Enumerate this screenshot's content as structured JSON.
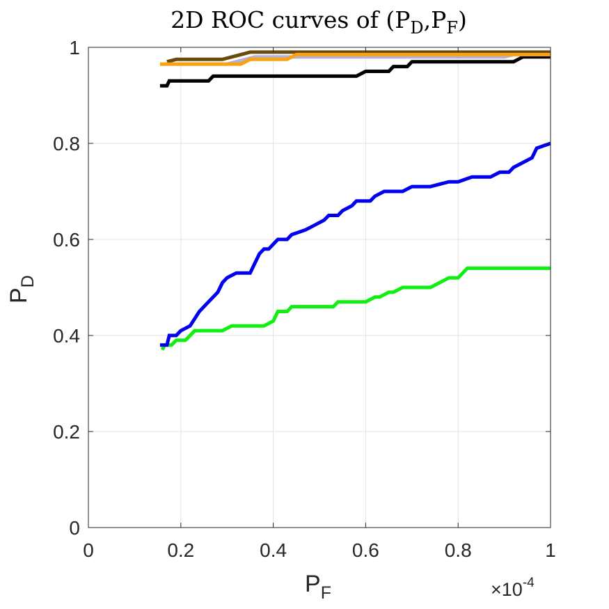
{
  "chart_data": {
    "type": "line",
    "title": {
      "prefix": "2D ROC curves of (P",
      "sub1": "D",
      "mid": ",P",
      "sub2": "F",
      "suffix": ")"
    },
    "xlabel": {
      "main": "P",
      "sub": "F"
    },
    "ylabel": {
      "main": "P",
      "sub": "D"
    },
    "x_exponent": {
      "base": "×10",
      "power": "-4"
    },
    "xlim": [
      0,
      1
    ],
    "ylim": [
      0,
      1
    ],
    "grid": true,
    "x_ticks": [
      0,
      0.2,
      0.4,
      0.6,
      0.8,
      1
    ],
    "y_ticks": [
      0,
      0.2,
      0.4,
      0.6,
      0.8,
      1
    ],
    "x_tick_labels": [
      "0",
      "0.2",
      "0.4",
      "0.6",
      "0.8",
      "1"
    ],
    "y_tick_labels": [
      "0",
      "0.2",
      "0.4",
      "0.6",
      "0.8",
      "1"
    ],
    "series": [
      {
        "name": "green",
        "color": "#11ee11",
        "x": [
          0.16,
          0.165,
          0.17,
          0.18,
          0.19,
          0.21,
          0.22,
          0.23,
          0.24,
          0.29,
          0.31,
          0.38,
          0.4,
          0.41,
          0.425,
          0.43,
          0.44,
          0.53,
          0.54,
          0.58,
          0.6,
          0.62,
          0.63,
          0.65,
          0.66,
          0.68,
          0.7,
          0.74,
          0.76,
          0.78,
          0.8,
          0.81,
          0.82,
          1.0
        ],
        "y": [
          0.37,
          0.38,
          0.38,
          0.38,
          0.39,
          0.39,
          0.4,
          0.41,
          0.41,
          0.41,
          0.42,
          0.42,
          0.43,
          0.45,
          0.45,
          0.45,
          0.46,
          0.46,
          0.47,
          0.47,
          0.47,
          0.48,
          0.48,
          0.49,
          0.49,
          0.5,
          0.5,
          0.5,
          0.51,
          0.52,
          0.52,
          0.53,
          0.54,
          0.54
        ]
      },
      {
        "name": "blue",
        "color": "#0000ee",
        "x": [
          0.155,
          0.17,
          0.175,
          0.19,
          0.2,
          0.22,
          0.24,
          0.25,
          0.26,
          0.27,
          0.28,
          0.29,
          0.3,
          0.32,
          0.35,
          0.36,
          0.37,
          0.38,
          0.39,
          0.4,
          0.41,
          0.43,
          0.44,
          0.47,
          0.49,
          0.51,
          0.52,
          0.54,
          0.55,
          0.57,
          0.58,
          0.6,
          0.61,
          0.62,
          0.64,
          0.68,
          0.7,
          0.74,
          0.78,
          0.79,
          0.8,
          0.83,
          0.87,
          0.89,
          0.91,
          0.92,
          0.94,
          0.96,
          0.97,
          1.0
        ],
        "y": [
          0.38,
          0.38,
          0.4,
          0.4,
          0.41,
          0.42,
          0.45,
          0.46,
          0.47,
          0.48,
          0.49,
          0.51,
          0.52,
          0.53,
          0.53,
          0.55,
          0.57,
          0.58,
          0.58,
          0.59,
          0.6,
          0.6,
          0.61,
          0.62,
          0.63,
          0.64,
          0.65,
          0.65,
          0.66,
          0.67,
          0.68,
          0.68,
          0.68,
          0.69,
          0.7,
          0.7,
          0.71,
          0.71,
          0.72,
          0.72,
          0.72,
          0.73,
          0.73,
          0.74,
          0.74,
          0.75,
          0.76,
          0.77,
          0.79,
          0.8
        ]
      },
      {
        "name": "black",
        "color": "#000000",
        "x": [
          0.155,
          0.17,
          0.175,
          0.26,
          0.27,
          0.58,
          0.6,
          0.65,
          0.66,
          0.69,
          0.7,
          0.92,
          0.94,
          0.95,
          1.0
        ],
        "y": [
          0.92,
          0.92,
          0.93,
          0.93,
          0.94,
          0.94,
          0.95,
          0.95,
          0.96,
          0.96,
          0.97,
          0.97,
          0.98,
          0.98,
          0.98
        ]
      },
      {
        "name": "lavender",
        "color": "#b3b1dc",
        "x": [
          0.16,
          0.3,
          0.32,
          0.34,
          0.36,
          0.9,
          0.92,
          1.0
        ],
        "y": [
          0.965,
          0.965,
          0.97,
          0.975,
          0.98,
          0.98,
          0.985,
          0.985
        ]
      },
      {
        "name": "brown",
        "color": "#6b4a0a",
        "x": [
          0.17,
          0.19,
          0.29,
          0.33,
          0.35,
          0.37,
          1.0
        ],
        "y": [
          0.97,
          0.975,
          0.975,
          0.985,
          0.99,
          0.99,
          0.99
        ]
      },
      {
        "name": "orange",
        "color": "#f8a30f",
        "x": [
          0.155,
          0.33,
          0.35,
          0.43,
          0.45,
          1.0
        ],
        "y": [
          0.965,
          0.965,
          0.975,
          0.975,
          0.985,
          0.985
        ]
      }
    ]
  }
}
